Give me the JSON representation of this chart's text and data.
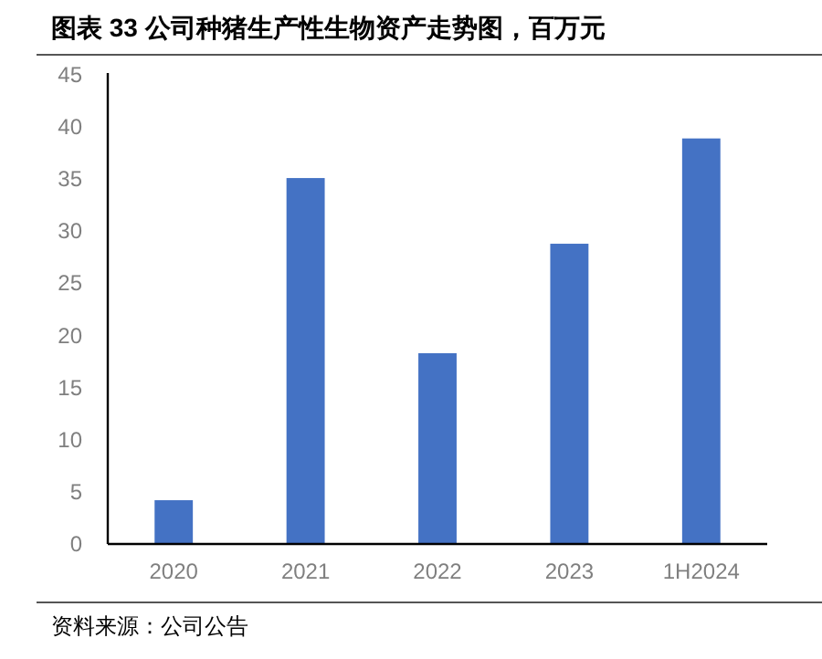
{
  "chart_data": {
    "type": "bar",
    "title": "图表 33 公司种猪生产性生物资产走势图，百万元",
    "categories": [
      "2020",
      "2021",
      "2022",
      "2023",
      "1H2024"
    ],
    "values": [
      4.2,
      35.1,
      18.3,
      28.8,
      38.9
    ],
    "color": "#4472c4",
    "ylim": [
      0,
      45
    ],
    "yticks": [
      0,
      5,
      10,
      15,
      20,
      25,
      30,
      35,
      40,
      45
    ],
    "grid": false,
    "annotations": [
      "资料来源：公司公告"
    ]
  }
}
